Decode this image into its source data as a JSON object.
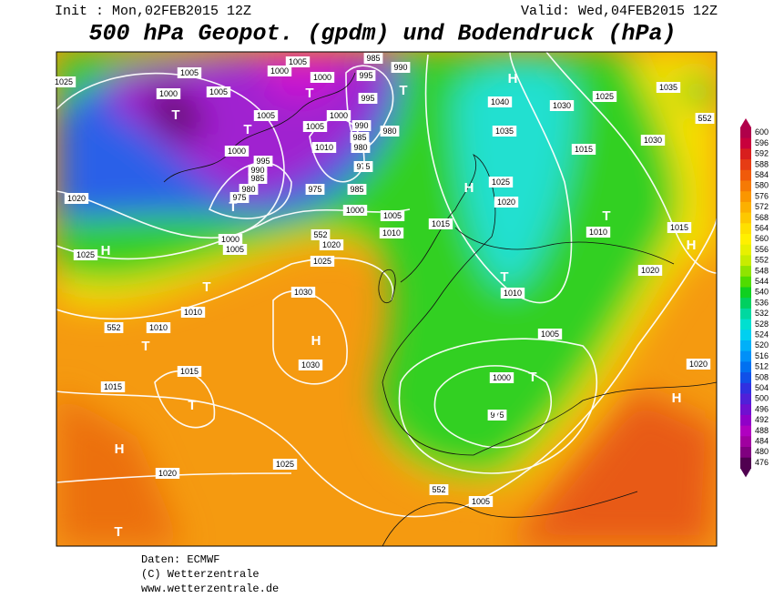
{
  "header": {
    "init": "Init : Mon,02FEB2015 12Z",
    "valid": "Valid: Wed,04FEB2015 12Z",
    "title": "500 hPa Geopot. (gpdm) und Bodendruck (hPa)"
  },
  "colorbar": {
    "ticks": [
      600,
      596,
      592,
      588,
      584,
      580,
      576,
      572,
      568,
      564,
      560,
      556,
      552,
      548,
      544,
      540,
      536,
      532,
      528,
      524,
      520,
      516,
      512,
      508,
      504,
      500,
      496,
      492,
      488,
      484,
      480,
      476
    ],
    "colors": [
      "#b0004a",
      "#c8003c",
      "#d81e1e",
      "#e63c14",
      "#f05a0a",
      "#f57a05",
      "#fa9600",
      "#fcb000",
      "#fdc800",
      "#fee000",
      "#fff000",
      "#e8f000",
      "#c8ec00",
      "#90e400",
      "#50dc00",
      "#10d020",
      "#00d060",
      "#00d8a0",
      "#00e0d0",
      "#00d0f0",
      "#00b0f8",
      "#0090f8",
      "#0070f0",
      "#1050e8",
      "#3030e0",
      "#5020d8",
      "#7010d0",
      "#9000c8",
      "#b000c0",
      "#a000a0",
      "#800080",
      "#500050"
    ]
  },
  "map": {
    "labels": [
      "1025",
      "1005",
      "1000",
      "1005",
      "1005",
      "1000",
      "1005",
      "1000",
      "995",
      "985",
      "990",
      "995",
      "1000",
      "1005",
      "990",
      "985",
      "980",
      "980",
      "1010",
      "975",
      "995",
      "990",
      "985",
      "980",
      "975",
      "1000",
      "975",
      "985",
      "1000",
      "1005",
      "1010",
      "1020",
      "1000",
      "1005",
      "552",
      "1020",
      "1025",
      "1025",
      "1030",
      "1010",
      "1010",
      "552",
      "1015",
      "1015",
      "1030",
      "1025",
      "1020",
      "552",
      "1005",
      "1040",
      "1030",
      "1025",
      "1035",
      "1035",
      "1030",
      "552",
      "1015",
      "1025",
      "1020",
      "1015",
      "1010",
      "1015",
      "1020",
      "1010",
      "1005",
      "1000",
      "975",
      "1020"
    ],
    "centers": [
      "T",
      "H",
      "T",
      "T",
      "T",
      "T",
      "T",
      "T",
      "T",
      "H",
      "H",
      "T",
      "H",
      "H",
      "T",
      "T",
      "T",
      "T",
      "H",
      "T",
      "H"
    ]
  },
  "footer": {
    "source": "Daten: ECMWF",
    "copyright": "(C) Wetterzentrale",
    "url": "www.wetterzentrale.de"
  }
}
